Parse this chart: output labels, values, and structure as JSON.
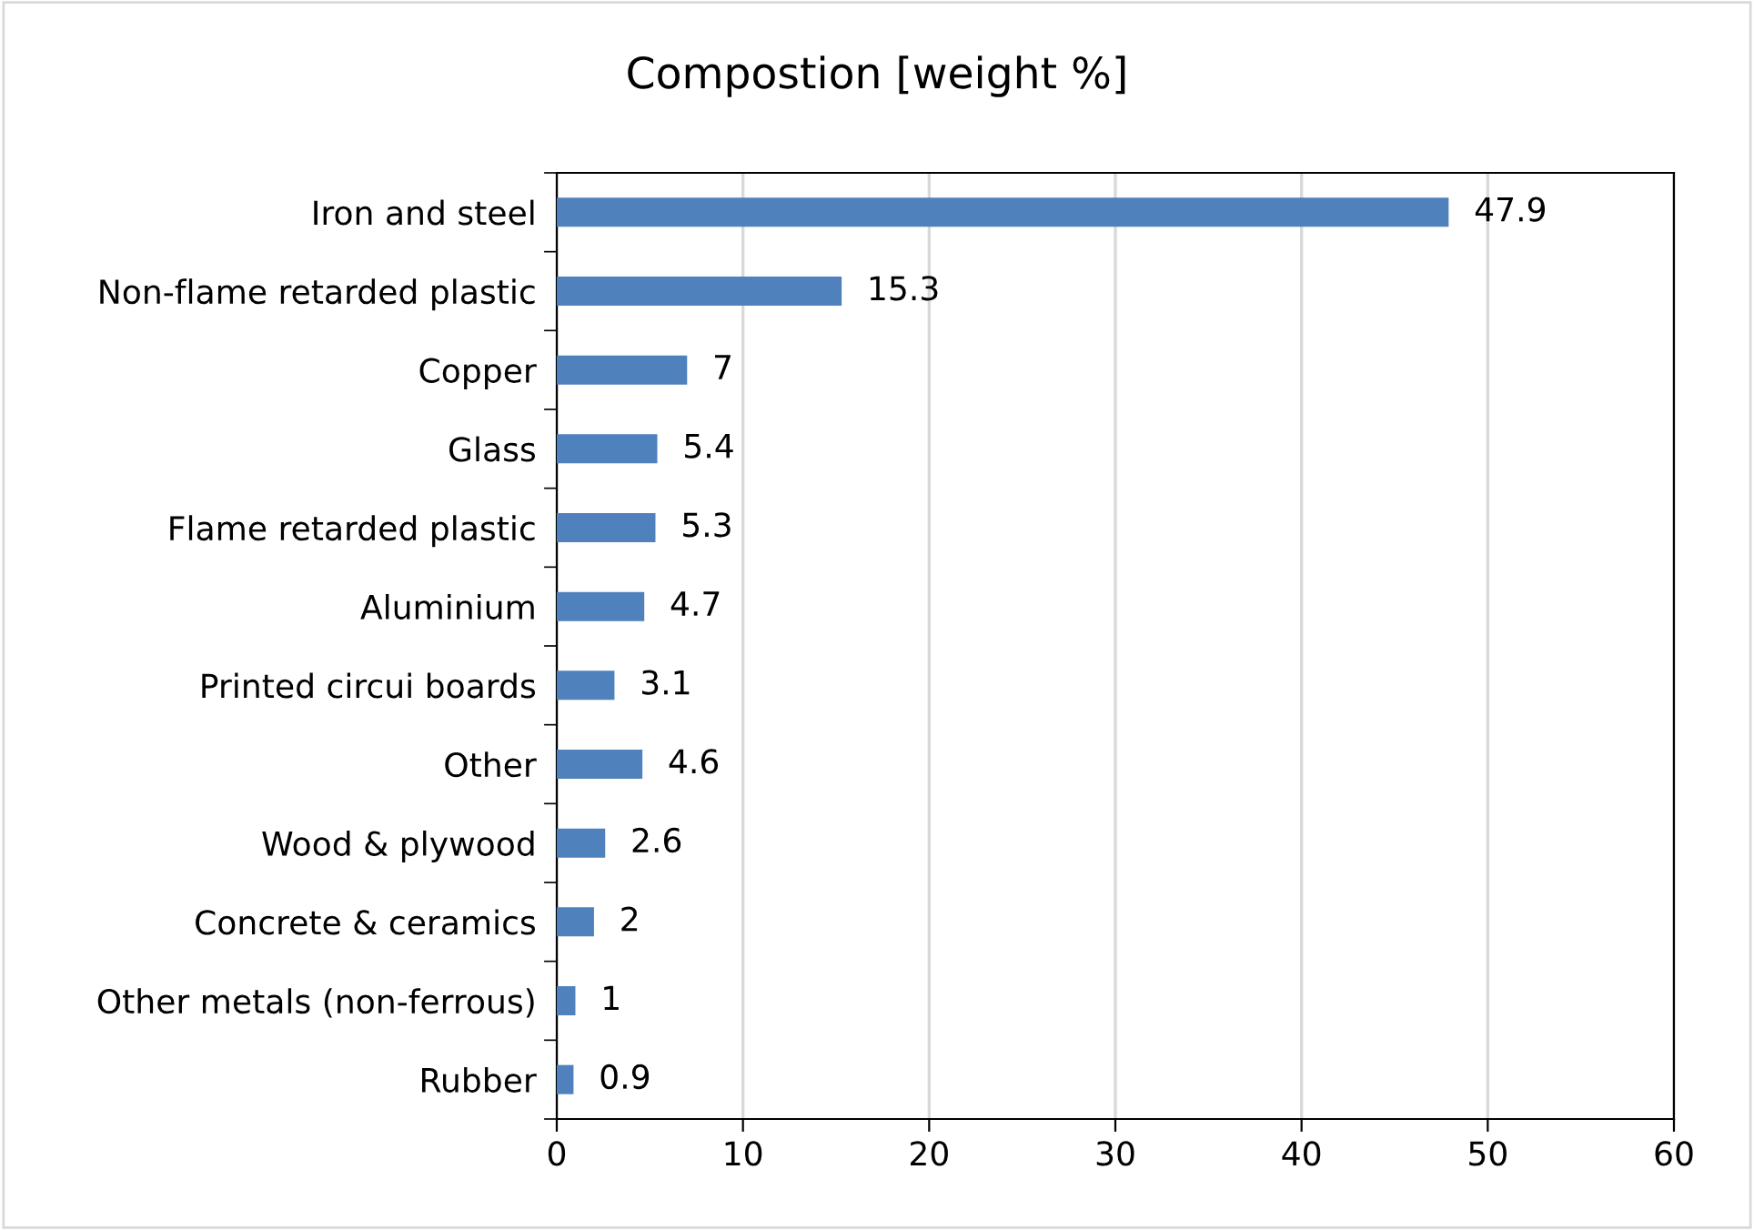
{
  "chart_data": {
    "type": "bar",
    "orientation": "horizontal",
    "title": "Compostion [weight %]",
    "categories": [
      "Iron and steel",
      "Non-flame retarded plastic",
      "Copper",
      "Glass",
      "Flame retarded plastic",
      "Aluminium",
      "Printed circui boards",
      "Other",
      "Wood & plywood",
      "Concrete & ceramics",
      "Other metals (non-ferrous)",
      "Rubber"
    ],
    "values": [
      47.9,
      15.3,
      7,
      5.4,
      5.3,
      4.7,
      3.1,
      4.6,
      2.6,
      2,
      1,
      0.9
    ],
    "color": "#4f81bd",
    "xlim": [
      0,
      60
    ],
    "xticks": [
      0,
      10,
      20,
      30,
      40,
      50,
      60
    ],
    "grid": "x",
    "data_labels": true
  }
}
